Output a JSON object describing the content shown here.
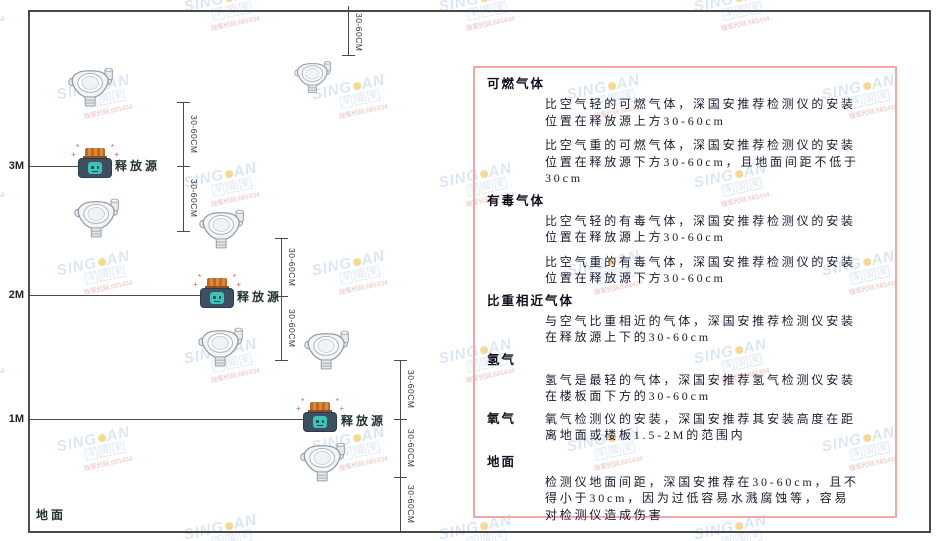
{
  "diagram": {
    "floor_label": "地面",
    "height_labels": [
      "3M",
      "2M",
      "1M"
    ],
    "source_label": "释放源",
    "dim_label": "30-60CM"
  },
  "panel": {
    "border_color": "#f2a6a6",
    "sections": [
      {
        "heading": "可燃气体",
        "paragraphs": [
          "比空气轻的可燃气体，深国安推荐检测仪的安装位置在释放源上方30-60cm",
          "比空气重的可燃气体，深国安推荐检测仪的安装位置在释放源下方30-60cm，且地面间距不低于30cm"
        ]
      },
      {
        "heading": "有毒气体",
        "paragraphs": [
          "比空气轻的有毒气体，深国安推荐检测仪的安装位置在释放源上方30-60cm",
          "比空气重的有毒气体，深国安推荐检测仪的安装位置在释放源下方30-60cm"
        ]
      },
      {
        "heading": "比重相近气体",
        "paragraphs": [
          "与空气比重相近的气体，深国安推荐检测仪安装在释放源上下的30-60cm"
        ]
      },
      {
        "heading": "氢气",
        "paragraphs": [
          "氢气是最轻的气体，深国安推荐氢气检测仪安装在楼板面下方的30-60cm"
        ]
      },
      {
        "heading": "氧气",
        "paragraphs": [
          "氧气检测仪的安装，深国安推荐其安装高度在距离地面或楼板1.5-2M的范围内"
        ]
      },
      {
        "heading": "地面",
        "paragraphs": [
          "检测仪地面间距，深国安推荐在30-60cm，且不得小于30cm，因为过低容易水溅腐蚀等，容易对检测仪造成伤害"
        ]
      }
    ]
  },
  "watermark": {
    "brand_prefix": "SING",
    "brand_suffix": "AN",
    "company": "深国安",
    "code_text": "独家代码:681434"
  },
  "colors": {
    "frame": "#4a4a4a",
    "panel_border": "#f2a6a6",
    "source_body": "#3d5062",
    "source_cap": "#c8772e",
    "source_face": "#3ec1b7",
    "watermark_blue": "#b9cfe8",
    "watermark_dot": "#f2b232"
  }
}
